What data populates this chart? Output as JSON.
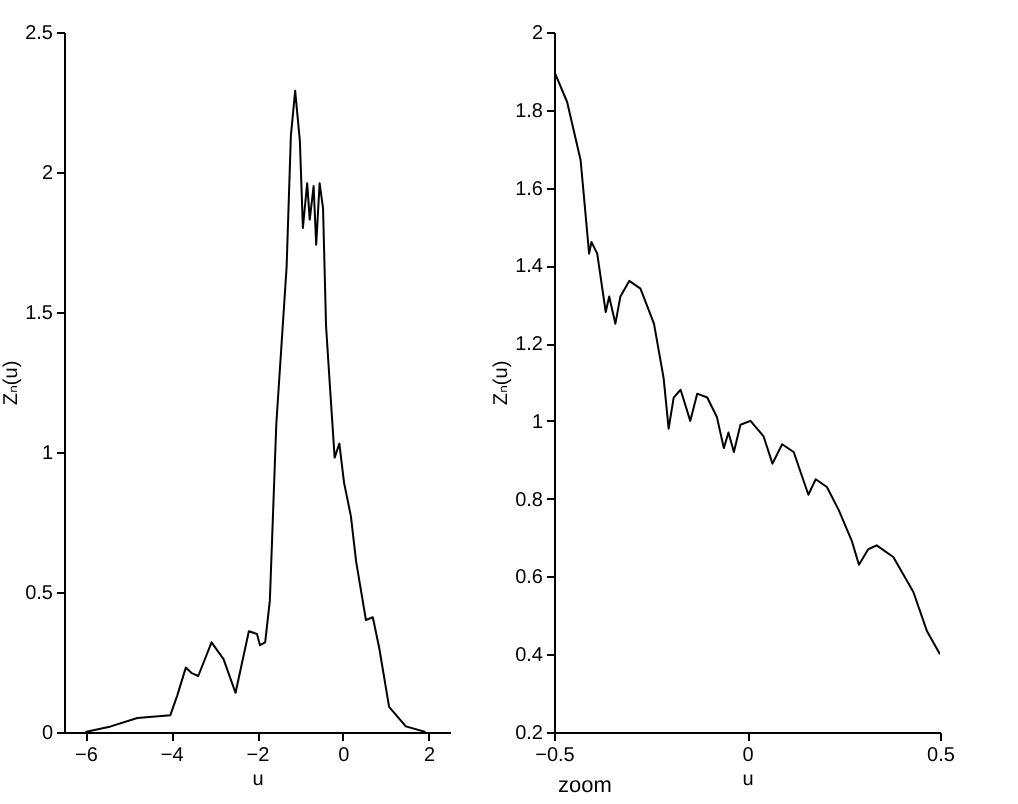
{
  "chart_data": [
    {
      "type": "line",
      "xlabel": "u",
      "ylabel": "Zₙ(u)",
      "xlim": [
        -6.5,
        2.5
      ],
      "xticks": [
        -6,
        -4,
        -2,
        0,
        2
      ],
      "ylim": [
        0,
        2.5
      ],
      "yticks": [
        0,
        0.5,
        1,
        1.5,
        2,
        2.5
      ],
      "grid": false,
      "marker": "none",
      "line_style": "solid",
      "series": [
        {
          "color": "#000000",
          "x": [
            -6,
            -5.41,
            -4.79,
            -4.02,
            -3.86,
            -3.66,
            -3.52,
            -3.37,
            -3.06,
            -2.78,
            -2.5,
            -2.19,
            -2.0,
            -1.93,
            -1.81,
            -1.7,
            -1.55,
            -1.31,
            -1.21,
            -1.11,
            -1.0,
            -0.93,
            -0.83,
            -0.77,
            -0.68,
            -0.62,
            -0.54,
            -0.46,
            -0.39,
            -0.31,
            -0.19,
            -0.08,
            0.03,
            0.19,
            0.31,
            0.54,
            0.7,
            0.85,
            1.08,
            1.47,
            1.93
          ],
          "values": [
            0,
            0.02,
            0.05,
            0.06,
            0.13,
            0.23,
            0.21,
            0.2,
            0.32,
            0.26,
            0.14,
            0.36,
            0.35,
            0.31,
            0.32,
            0.47,
            1.1,
            1.66,
            2.13,
            2.29,
            2.11,
            1.8,
            1.96,
            1.83,
            1.95,
            1.74,
            1.96,
            1.87,
            1.45,
            1.26,
            0.98,
            1.03,
            0.89,
            0.77,
            0.61,
            0.4,
            0.41,
            0.3,
            0.09,
            0.02,
            0
          ]
        }
      ]
    },
    {
      "type": "line",
      "xlabel": "u",
      "ylabel": "Zₙ(u)",
      "annotations": [
        "zoom"
      ],
      "xlim": [
        -0.5,
        0.5
      ],
      "xticks": [
        -0.5,
        0,
        0.5
      ],
      "ylim": [
        0.2,
        2
      ],
      "yticks": [
        0.2,
        0.4,
        0.6,
        0.8,
        1,
        1.2,
        1.4,
        1.6,
        1.8,
        2
      ],
      "grid": false,
      "marker": "none",
      "line_style": "solid",
      "series": [
        {
          "color": "#000000",
          "x": [
            -0.5,
            -0.466,
            -0.431,
            -0.409,
            -0.403,
            -0.388,
            -0.366,
            -0.357,
            -0.341,
            -0.328,
            -0.305,
            -0.276,
            -0.241,
            -0.216,
            -0.203,
            -0.19,
            -0.172,
            -0.147,
            -0.129,
            -0.103,
            -0.078,
            -0.06,
            -0.048,
            -0.034,
            -0.017,
            0.009,
            0.043,
            0.066,
            0.091,
            0.121,
            0.159,
            0.178,
            0.207,
            0.238,
            0.272,
            0.29,
            0.314,
            0.336,
            0.379,
            0.431,
            0.466,
            0.5
          ],
          "values": [
            1.9,
            1.82,
            1.67,
            1.43,
            1.46,
            1.43,
            1.28,
            1.32,
            1.25,
            1.32,
            1.36,
            1.34,
            1.25,
            1.11,
            0.98,
            1.06,
            1.08,
            1.0,
            1.07,
            1.06,
            1.01,
            0.93,
            0.97,
            0.92,
            0.99,
            1.0,
            0.96,
            0.89,
            0.94,
            0.92,
            0.81,
            0.85,
            0.83,
            0.77,
            0.69,
            0.63,
            0.67,
            0.68,
            0.65,
            0.56,
            0.46,
            0.4
          ]
        }
      ]
    }
  ]
}
